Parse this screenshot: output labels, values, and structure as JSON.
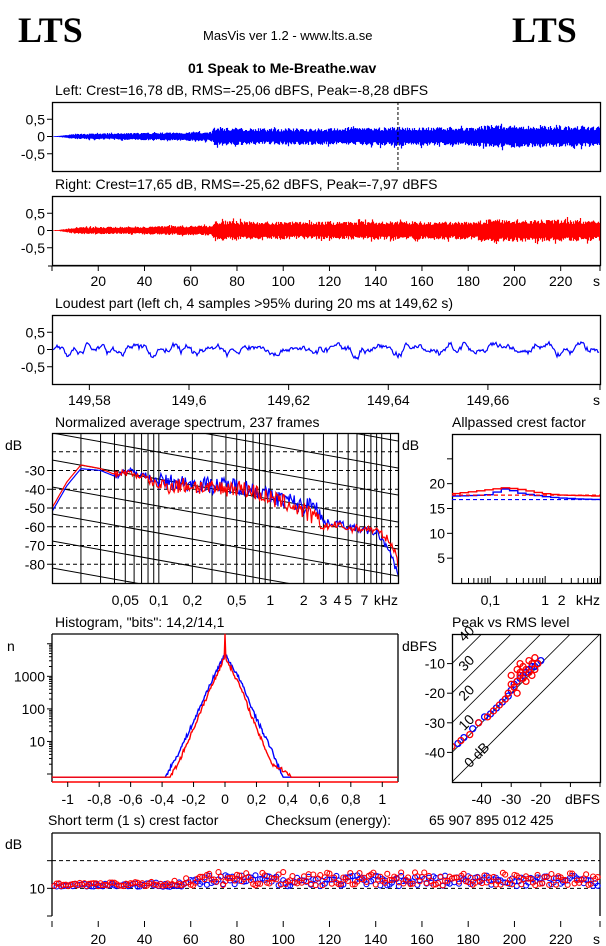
{
  "header": {
    "logo_left": "LTS",
    "logo_right": "LTS",
    "app_title": "MasVis ver 1.2 - www.lts.a.se",
    "file_name": "01 Speak to Me-Breathe.wav"
  },
  "colors": {
    "left": "#0000ff",
    "right": "#ff0000",
    "axis": "#000000"
  },
  "chart_data": [
    {
      "id": "left-waveform",
      "type": "area",
      "title": "Left: Crest=16,78 dB, RMS=-25,06 dBFS, Peak=-8,28 dBFS",
      "ylim": [
        -1,
        1
      ],
      "xlim": [
        0,
        237
      ],
      "yticks": [
        "0,5",
        "0",
        "-0,5"
      ],
      "ytick_values": [
        0.5,
        0,
        -0.5
      ],
      "marker_x": 149.62,
      "envelope": {
        "x": [
          0,
          3,
          10,
          30,
          60,
          69,
          70,
          90,
          120,
          149,
          150,
          180,
          190,
          210,
          237
        ],
        "amp": [
          0.01,
          0.02,
          0.08,
          0.1,
          0.13,
          0.15,
          0.27,
          0.24,
          0.24,
          0.28,
          0.28,
          0.26,
          0.34,
          0.31,
          0.3
        ]
      },
      "series": [
        {
          "name": "Left",
          "color": "#0000ff"
        }
      ]
    },
    {
      "id": "right-waveform",
      "type": "area",
      "title": "Right: Crest=17,65 dB, RMS=-25,62 dBFS, Peak=-7,97 dBFS",
      "ylim": [
        -1,
        1
      ],
      "xlim": [
        0,
        237
      ],
      "yticks": [
        "0,5",
        "0",
        "-0,5"
      ],
      "ytick_values": [
        0.5,
        0,
        -0.5
      ],
      "xticks": [
        "20",
        "40",
        "60",
        "80",
        "100",
        "120",
        "140",
        "160",
        "180",
        "200",
        "220",
        "s"
      ],
      "xtick_values": [
        20,
        40,
        60,
        80,
        100,
        120,
        140,
        160,
        180,
        200,
        220,
        237
      ],
      "envelope": {
        "x": [
          0,
          3,
          10,
          30,
          60,
          69,
          70,
          90,
          120,
          149,
          150,
          180,
          190,
          210,
          237
        ],
        "amp": [
          0.01,
          0.02,
          0.1,
          0.11,
          0.14,
          0.15,
          0.3,
          0.26,
          0.26,
          0.27,
          0.27,
          0.26,
          0.33,
          0.33,
          0.3
        ]
      },
      "series": [
        {
          "name": "Right",
          "color": "#ff0000"
        }
      ]
    },
    {
      "id": "loudest-part",
      "type": "line",
      "title": "Loudest part (left  ch, 4 samples >95% during 20 ms at 149,62 s)",
      "ylim": [
        -1,
        1
      ],
      "xlim": [
        149.5725,
        149.6825
      ],
      "yticks": [
        "0,5",
        "0",
        "-0,5"
      ],
      "ytick_values": [
        0.5,
        0,
        -0.5
      ],
      "xticks": [
        "149,58",
        "149,6",
        "149,62",
        "149,64",
        "149,66",
        "s"
      ],
      "xtick_values": [
        149.58,
        149.6,
        149.62,
        149.64,
        149.66,
        149.6825
      ],
      "series": [
        {
          "name": "Left",
          "color": "#0000ff",
          "amplitude": 0.3
        }
      ]
    },
    {
      "id": "spectrum",
      "type": "line",
      "title": "Normalized average spectrum, 237 frames",
      "ylabel": "dB",
      "xlabel": "kHz",
      "xscale": "log",
      "xlim_khz": [
        0.011,
        14
      ],
      "ylim": [
        -90,
        -10
      ],
      "yticks": [
        "-30",
        "-40",
        "-50",
        "-60",
        "-70",
        "-80"
      ],
      "ytick_values": [
        -30,
        -40,
        -50,
        -60,
        -70,
        -80
      ],
      "xticks": [
        "0,05",
        "0,1",
        "0,2",
        "0,5",
        "1",
        "2",
        "3",
        "4",
        "5",
        "7",
        "kHz"
      ],
      "xtick_values": [
        0.05,
        0.1,
        0.2,
        0.5,
        1,
        2,
        3,
        4,
        5,
        7,
        14
      ],
      "grid": "dashed horizontal + log vertical + sloped reference lines",
      "series": [
        {
          "name": "Left",
          "color": "#0000ff",
          "f": [
            0.011,
            0.015,
            0.02,
            0.03,
            0.04,
            0.05,
            0.07,
            0.1,
            0.2,
            0.3,
            0.5,
            0.7,
            1,
            1.5,
            2,
            2.5,
            3,
            4,
            5,
            7,
            9,
            11,
            13,
            14
          ],
          "db": [
            -52,
            -38,
            -29,
            -30,
            -33,
            -30,
            -32,
            -36,
            -37,
            -38,
            -38,
            -40,
            -44,
            -46,
            -50,
            -46,
            -58,
            -58,
            -60,
            -62,
            -63,
            -70,
            -80,
            -85
          ]
        },
        {
          "name": "Right",
          "color": "#ff0000",
          "f": [
            0.011,
            0.015,
            0.02,
            0.03,
            0.04,
            0.05,
            0.07,
            0.1,
            0.2,
            0.3,
            0.5,
            0.7,
            1,
            1.5,
            2,
            2.5,
            3,
            4,
            5,
            7,
            9,
            11,
            13,
            14
          ],
          "db": [
            -50,
            -36,
            -27,
            -29,
            -32,
            -31,
            -33,
            -38,
            -38,
            -40,
            -39,
            -41,
            -45,
            -48,
            -52,
            -55,
            -60,
            -59,
            -61,
            -61,
            -62,
            -66,
            -72,
            -80
          ]
        }
      ]
    },
    {
      "id": "allpassed-crest",
      "type": "line",
      "title": "Allpassed crest factor",
      "ylabel": "dB",
      "xlabel": "kHz",
      "xscale": "log",
      "xlim_khz": [
        0.02,
        10
      ],
      "ylim": [
        0,
        30
      ],
      "yticks": [
        "20",
        "15",
        "10",
        "5"
      ],
      "ytick_values": [
        20,
        15,
        10,
        5
      ],
      "xticks": [
        "0,1",
        "1",
        "2",
        "kHz"
      ],
      "xtick_values": [
        0.1,
        1,
        2,
        10
      ],
      "series": [
        {
          "name": "Left",
          "color": "#0000ff",
          "f": [
            0.02,
            0.05,
            0.1,
            0.2,
            0.4,
            1,
            2,
            5,
            10
          ],
          "db": [
            17.5,
            17.6,
            17.8,
            19.0,
            18.0,
            17.4,
            17.1,
            16.9,
            16.8
          ],
          "reference_db": 16.8
        },
        {
          "name": "Right",
          "color": "#ff0000",
          "f": [
            0.02,
            0.05,
            0.1,
            0.2,
            0.4,
            1,
            2,
            5,
            10
          ],
          "db": [
            17.9,
            18.4,
            18.8,
            19.2,
            18.8,
            18.0,
            17.7,
            17.6,
            17.5
          ],
          "reference_db": 17.7
        }
      ]
    },
    {
      "id": "histogram",
      "type": "line",
      "title": "Histogram, \"bits\": 14,2/14,1",
      "ylabel": "n",
      "yscale": "log",
      "xlim": [
        -1.1,
        1.1
      ],
      "ylim_log10": [
        0,
        4.3
      ],
      "yticks": [
        "1000",
        "100",
        "10"
      ],
      "ytick_values": [
        1000,
        100,
        10
      ],
      "xticks": [
        "-1",
        "-0,8",
        "-0,6",
        "-0,4",
        "-0,2",
        "0",
        "0,2",
        "0,4",
        "0,6",
        "0,8",
        "1"
      ],
      "xtick_values": [
        -1,
        -0.8,
        -0.6,
        -0.4,
        -0.2,
        0,
        0.2,
        0.4,
        0.6,
        0.8,
        1
      ],
      "series": [
        {
          "name": "Left",
          "color": "#0000ff",
          "x": [
            -1.1,
            -0.38,
            -0.37,
            -0.3,
            -0.2,
            -0.1,
            0,
            0.1,
            0.2,
            0.3,
            0.36,
            0.37,
            1.1
          ],
          "n": [
            0.8,
            0.8,
            1,
            4,
            40,
            500,
            5000,
            700,
            50,
            5,
            1,
            0.8,
            0.8
          ]
        },
        {
          "name": "Right",
          "color": "#ff0000",
          "x": [
            -1.1,
            -0.35,
            -0.34,
            -0.3,
            -0.2,
            -0.1,
            -0.001,
            0,
            0.001,
            0.1,
            0.2,
            0.3,
            0.41,
            0.42,
            1.1
          ],
          "n": [
            0.8,
            0.8,
            1,
            2,
            25,
            350,
            4000,
            20000,
            4000,
            450,
            25,
            2,
            1,
            0.8,
            0.8
          ]
        }
      ]
    },
    {
      "id": "peak-vs-rms",
      "type": "scatter",
      "title": "Peak vs RMS level",
      "ylabel": "dBFS",
      "xlabel": "dBFS",
      "xlim": [
        -50,
        0
      ],
      "ylim": [
        -50,
        0
      ],
      "xticks": [
        "-40",
        "-30",
        "-20",
        "dBFS"
      ],
      "xtick_values": [
        -40,
        -30,
        -20,
        0
      ],
      "yticks": [
        "-10",
        "-20",
        "-30",
        "-40"
      ],
      "ytick_values": [
        -10,
        -20,
        -30,
        -40
      ],
      "crest_lines": [
        "0 dB",
        "10",
        "20",
        "30",
        "40"
      ],
      "crest_line_values": [
        0,
        10,
        20,
        30,
        40
      ],
      "series": [
        {
          "name": "Left",
          "color": "#0000ff",
          "rms": [
            -48,
            -46,
            -43,
            -41,
            -39,
            -37,
            -35,
            -33,
            -31,
            -30,
            -29,
            -28,
            -27,
            -26,
            -25,
            -24,
            -23,
            -22,
            -21,
            -20
          ],
          "peak": [
            -37,
            -35,
            -32,
            -30,
            -28,
            -27,
            -25,
            -23,
            -21,
            -19,
            -17,
            -16,
            -15,
            -14,
            -13,
            -12,
            -11,
            -11,
            -10,
            -9
          ]
        },
        {
          "name": "Right",
          "color": "#ff0000",
          "rms": [
            -50,
            -47,
            -44,
            -41,
            -38,
            -36,
            -34,
            -32,
            -31,
            -30,
            -29,
            -28,
            -28,
            -27,
            -27,
            -26,
            -26,
            -25,
            -25,
            -24,
            -24,
            -23,
            -23,
            -22,
            -22,
            -21,
            -28,
            -29,
            -30,
            -27
          ],
          "peak": [
            -38,
            -36,
            -34,
            -30,
            -28,
            -26,
            -24,
            -22,
            -20,
            -14,
            -18,
            -12,
            -16,
            -10,
            -14,
            -11,
            -15,
            -12,
            -16,
            -9,
            -13,
            -10,
            -14,
            -8,
            -12,
            -10,
            -20,
            -18,
            -17,
            -13
          ]
        }
      ]
    },
    {
      "id": "short-term-crest",
      "type": "scatter",
      "title": "Short term (1 s) crest factor",
      "ylabel": "dB",
      "xlim": [
        0,
        237
      ],
      "ylim": [
        5,
        20
      ],
      "yticks": [
        "10"
      ],
      "ytick_values": [
        10
      ],
      "dashed_lines_db": [
        10,
        15
      ],
      "xticks": [
        "20",
        "40",
        "60",
        "80",
        "100",
        "120",
        "140",
        "160",
        "180",
        "200",
        "220",
        "s"
      ],
      "xtick_values": [
        20,
        40,
        60,
        80,
        100,
        120,
        140,
        160,
        180,
        200,
        220,
        237
      ],
      "series": [
        {
          "name": "Left",
          "color": "#0000ff",
          "segments": {
            "x": [
              0,
              50,
              70,
              237
            ],
            "mean_db": [
              10.5,
              10.6,
              11.2,
              11.2
            ],
            "spread_db": [
              0.4,
              0.6,
              1.5,
              1.4
            ]
          }
        },
        {
          "name": "Right",
          "color": "#ff0000",
          "segments": {
            "x": [
              0,
              50,
              70,
              237
            ],
            "mean_db": [
              10.6,
              10.7,
              11.5,
              11.4
            ],
            "spread_db": [
              0.4,
              0.6,
              1.8,
              1.6
            ]
          }
        }
      ]
    }
  ],
  "footer": {
    "checksum_label": "Checksum (energy):",
    "checksum_value": "65 907 895 012 425"
  }
}
